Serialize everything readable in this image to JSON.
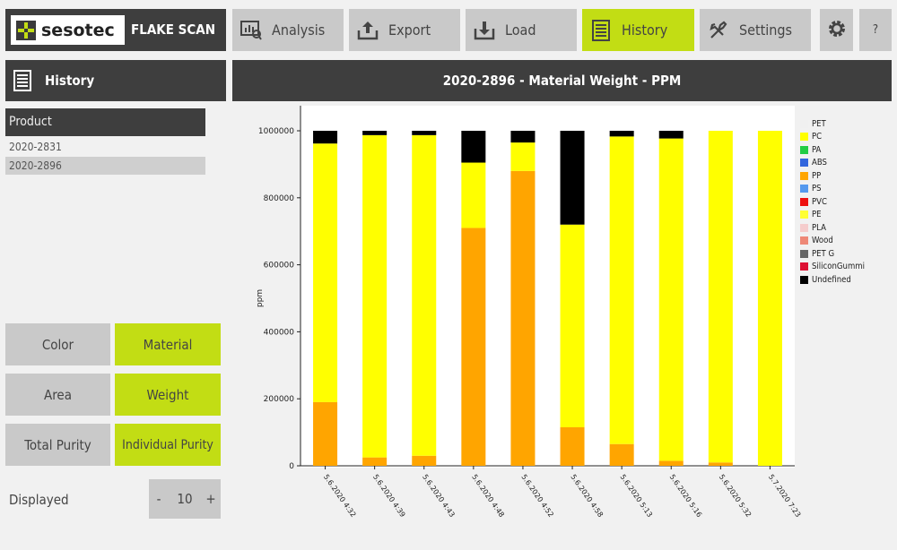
{
  "app": {
    "logo_text": "sesotec",
    "title": "FLAKE SCAN"
  },
  "tabs": [
    {
      "label": "Analysis",
      "icon": "analysis-icon"
    },
    {
      "label": "Export",
      "icon": "export-icon"
    },
    {
      "label": "Load",
      "icon": "load-icon"
    },
    {
      "label": "History",
      "icon": "history-icon",
      "active": true
    },
    {
      "label": "Settings",
      "icon": "settings-icon"
    }
  ],
  "toolbar": {
    "gear_icon": "gear-icon",
    "help_label": "?"
  },
  "sidebar": {
    "title": "History",
    "product_header": "Product",
    "products": [
      "2020-2831",
      "2020-2896"
    ],
    "selected_product": "2020-2896",
    "option_buttons": [
      {
        "label": "Color",
        "active": false
      },
      {
        "label": "Material",
        "active": true
      },
      {
        "label": "Area",
        "active": false
      },
      {
        "label": "Weight",
        "active": true
      },
      {
        "label": "Total Purity",
        "active": false
      },
      {
        "label": "Individual Purity",
        "active": true
      }
    ],
    "displayed_label": "Displayed",
    "displayed_value": "10",
    "minus_label": "-",
    "plus_label": "+"
  },
  "main": {
    "title": "2020-2896 - Material Weight - PPM"
  },
  "colors": {
    "accent_green": "#c2dd14",
    "dark_header": "#3e3e3e",
    "PC": "#ffff00",
    "PP": "#ffa500",
    "Undefined": "#000000"
  },
  "chart_data": {
    "type": "bar",
    "stacked": true,
    "ylabel": "ppm",
    "ylim": [
      0,
      1000000
    ],
    "yticks": [
      "0",
      "200000",
      "400000",
      "600000",
      "800000",
      "1000000"
    ],
    "grid": false,
    "legend_position": "right",
    "categories": [
      "5.6.2020 4:32",
      "5.6.2020 4:39",
      "5.6.2020 4:43",
      "5.6.2020 4:48",
      "5.6.2020 4:52",
      "5.6.2020 4:58",
      "5.6.2020 5:13",
      "5.6.2020 5:16",
      "5.6.2020 5:32",
      "5.7.2020 7:23"
    ],
    "legend": [
      {
        "name": "PET",
        "color": "#f0f0f0"
      },
      {
        "name": "PC",
        "color": "#ffff00"
      },
      {
        "name": "PA",
        "color": "#22cc44"
      },
      {
        "name": "ABS",
        "color": "#3366dd"
      },
      {
        "name": "PP",
        "color": "#ffa500"
      },
      {
        "name": "PS",
        "color": "#5599ee"
      },
      {
        "name": "PVC",
        "color": "#ee1111"
      },
      {
        "name": "PE",
        "color": "#ffff33"
      },
      {
        "name": "PLA",
        "color": "#f5cccc"
      },
      {
        "name": "Wood",
        "color": "#ee8877"
      },
      {
        "name": "PET G",
        "color": "#666666"
      },
      {
        "name": "SiliconGummi",
        "color": "#dd1133"
      },
      {
        "name": "Undefined",
        "color": "#000000"
      }
    ],
    "series": [
      {
        "name": "PP",
        "color": "#ffa500",
        "values": [
          190000,
          25000,
          30000,
          710000,
          880000,
          115000,
          65000,
          15000,
          10000,
          0
        ]
      },
      {
        "name": "PC",
        "color": "#ffff00",
        "values": [
          772000,
          962000,
          957000,
          195000,
          85000,
          605000,
          918000,
          962000,
          990000,
          1000000
        ]
      },
      {
        "name": "Undefined",
        "color": "#000000",
        "values": [
          38000,
          13000,
          13000,
          95000,
          35000,
          280000,
          17000,
          23000,
          0,
          0
        ]
      }
    ]
  }
}
